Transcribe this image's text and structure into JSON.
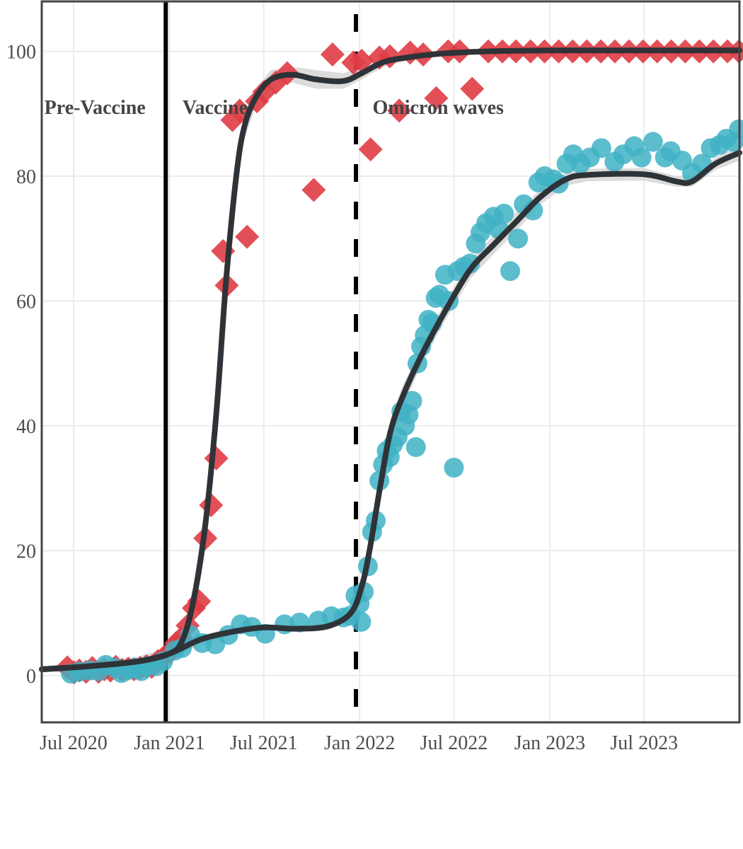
{
  "chart_data": {
    "type": "scatter",
    "title": "",
    "xlabel": "",
    "ylabel": "",
    "xlim": [
      "2020-05-01",
      "2023-12-31"
    ],
    "ylim": [
      -7.5,
      108
    ],
    "grid": true,
    "legend": "none",
    "x_ticks": [
      {
        "date": "2020-07-01",
        "label": "Jul 2020"
      },
      {
        "date": "2021-01-01",
        "label": "Jan 2021"
      },
      {
        "date": "2021-07-01",
        "label": "Jul 2021"
      },
      {
        "date": "2022-01-01",
        "label": "Jan 2022"
      },
      {
        "date": "2022-07-01",
        "label": "Jul 2022"
      },
      {
        "date": "2023-01-01",
        "label": "Jan 2023"
      },
      {
        "date": "2023-07-01",
        "label": "Jul 2023"
      }
    ],
    "y_ticks": [
      0,
      20,
      40,
      60,
      80,
      100
    ],
    "reference_lines": [
      {
        "date": "2020-12-25",
        "style": "solid",
        "color": "#000000"
      },
      {
        "date": "2021-12-25",
        "style": "dashed",
        "color": "#000000"
      }
    ],
    "annotations": [
      {
        "text": "Pre-Vaccine",
        "date": "2020-05-06",
        "y": 90
      },
      {
        "text": "Vaccine",
        "date": "2021-01-26",
        "y": 90
      },
      {
        "text": "Omicron waves",
        "date": "2022-01-26",
        "y": 90
      }
    ],
    "series": [
      {
        "marker": "diamond",
        "color": "#e03c44",
        "points": [
          [
            "2020-06-19",
            1.3
          ],
          [
            "2020-07-02",
            0.5
          ],
          [
            "2020-07-12",
            0.8
          ],
          [
            "2020-07-25",
            0.6
          ],
          [
            "2020-08-06",
            1.2
          ],
          [
            "2020-08-18",
            0.6
          ],
          [
            "2020-08-29",
            1.0
          ],
          [
            "2020-09-10",
            0.8
          ],
          [
            "2020-09-20",
            1.4
          ],
          [
            "2020-10-02",
            0.9
          ],
          [
            "2020-10-14",
            1.1
          ],
          [
            "2020-10-25",
            1.0
          ],
          [
            "2020-11-06",
            1.2
          ],
          [
            "2020-11-18",
            1.5
          ],
          [
            "2020-11-28",
            1.4
          ],
          [
            "2020-12-10",
            2.3
          ],
          [
            "2020-12-22",
            3.0
          ],
          [
            "2021-01-03",
            3.8
          ],
          [
            "2021-01-14",
            5.2
          ],
          [
            "2021-01-24",
            6.0
          ],
          [
            "2021-02-05",
            8.0
          ],
          [
            "2021-02-17",
            10.8
          ],
          [
            "2021-02-27",
            11.9
          ],
          [
            "2021-03-11",
            22.0
          ],
          [
            "2021-03-22",
            27.3
          ],
          [
            "2021-04-01",
            34.8
          ],
          [
            "2021-04-14",
            68.0
          ],
          [
            "2021-04-21",
            62.5
          ],
          [
            "2021-05-02",
            89.0
          ],
          [
            "2021-05-16",
            90.5
          ],
          [
            "2021-05-30",
            70.3
          ],
          [
            "2021-06-18",
            92.0
          ],
          [
            "2021-07-02",
            93.5
          ],
          [
            "2021-07-24",
            95.0
          ],
          [
            "2021-08-15",
            96.5
          ],
          [
            "2021-10-05",
            77.8
          ],
          [
            "2021-11-10",
            99.5
          ],
          [
            "2021-12-20",
            98.2
          ],
          [
            "2022-01-05",
            98.5
          ],
          [
            "2022-01-22",
            84.3
          ],
          [
            "2022-02-08",
            99.0
          ],
          [
            "2022-02-28",
            99.2
          ],
          [
            "2022-03-18",
            90.5
          ],
          [
            "2022-04-08",
            99.8
          ],
          [
            "2022-05-03",
            99.5
          ],
          [
            "2022-05-28",
            92.5
          ],
          [
            "2022-06-20",
            100.0
          ],
          [
            "2022-07-12",
            100.0
          ],
          [
            "2022-08-05",
            94.0
          ],
          [
            "2022-09-05",
            100.0
          ],
          [
            "2022-10-02",
            100.0
          ],
          [
            "2022-10-28",
            100.0
          ],
          [
            "2022-11-25",
            100.0
          ],
          [
            "2022-12-22",
            100.0
          ],
          [
            "2023-01-18",
            100.0
          ],
          [
            "2023-02-14",
            100.0
          ],
          [
            "2023-03-13",
            100.0
          ],
          [
            "2023-04-09",
            100.0
          ],
          [
            "2023-05-06",
            100.0
          ],
          [
            "2023-06-02",
            100.0
          ],
          [
            "2023-06-29",
            100.0
          ],
          [
            "2023-07-26",
            100.0
          ],
          [
            "2023-08-22",
            100.0
          ],
          [
            "2023-09-18",
            100.0
          ],
          [
            "2023-10-15",
            100.0
          ],
          [
            "2023-11-11",
            100.0
          ],
          [
            "2023-12-08",
            100.0
          ],
          [
            "2023-12-30",
            100.0
          ]
        ]
      },
      {
        "marker": "circle",
        "color": "#3fb1c4",
        "points": [
          [
            "2020-06-26",
            0.3
          ],
          [
            "2020-07-12",
            0.6
          ],
          [
            "2020-08-01",
            0.8
          ],
          [
            "2020-08-18",
            0.7
          ],
          [
            "2020-09-01",
            1.7
          ],
          [
            "2020-09-18",
            1.2
          ],
          [
            "2020-10-01",
            0.4
          ],
          [
            "2020-10-14",
            0.9
          ],
          [
            "2020-10-26",
            1.2
          ],
          [
            "2020-11-08",
            0.7
          ],
          [
            "2020-11-21",
            1.5
          ],
          [
            "2020-12-07",
            1.5
          ],
          [
            "2020-12-20",
            2.3
          ],
          [
            "2021-01-11",
            4.0
          ],
          [
            "2021-01-25",
            4.4
          ],
          [
            "2021-02-10",
            6.5
          ],
          [
            "2021-03-05",
            5.2
          ],
          [
            "2021-03-30",
            5.0
          ],
          [
            "2021-04-24",
            6.5
          ],
          [
            "2021-05-18",
            8.2
          ],
          [
            "2021-06-08",
            7.8
          ],
          [
            "2021-07-04",
            6.7
          ],
          [
            "2021-08-10",
            8.2
          ],
          [
            "2021-09-08",
            8.5
          ],
          [
            "2021-10-14",
            8.8
          ],
          [
            "2021-11-08",
            9.5
          ],
          [
            "2021-12-01",
            9.3
          ],
          [
            "2021-12-14",
            9.6
          ],
          [
            "2021-12-24",
            12.8
          ],
          [
            "2022-01-01",
            11.5
          ],
          [
            "2022-01-04",
            8.6
          ],
          [
            "2022-01-09",
            13.4
          ],
          [
            "2022-01-17",
            17.5
          ],
          [
            "2022-01-25",
            23.0
          ],
          [
            "2022-02-01",
            24.8
          ],
          [
            "2022-02-08",
            31.2
          ],
          [
            "2022-02-15",
            33.8
          ],
          [
            "2022-02-22",
            36.0
          ],
          [
            "2022-02-28",
            35.0
          ],
          [
            "2022-03-06",
            37.0
          ],
          [
            "2022-03-15",
            38.2
          ],
          [
            "2022-03-22",
            42.3
          ],
          [
            "2022-03-29",
            40.0
          ],
          [
            "2022-04-05",
            41.8
          ],
          [
            "2022-04-12",
            44.0
          ],
          [
            "2022-04-19",
            36.6
          ],
          [
            "2022-04-22",
            50.0
          ],
          [
            "2022-04-29",
            52.7
          ],
          [
            "2022-05-06",
            54.5
          ],
          [
            "2022-05-13",
            57.0
          ],
          [
            "2022-05-20",
            56.5
          ],
          [
            "2022-05-27",
            60.5
          ],
          [
            "2022-06-03",
            61.0
          ],
          [
            "2022-06-14",
            64.2
          ],
          [
            "2022-06-21",
            60.0
          ],
          [
            "2022-07-01",
            33.3
          ],
          [
            "2022-07-08",
            64.8
          ],
          [
            "2022-07-20",
            65.5
          ],
          [
            "2022-08-01",
            66.0
          ],
          [
            "2022-08-12",
            69.2
          ],
          [
            "2022-08-21",
            71.0
          ],
          [
            "2022-09-01",
            72.5
          ],
          [
            "2022-09-15",
            73.5
          ],
          [
            "2022-09-25",
            71.5
          ],
          [
            "2022-10-05",
            74.0
          ],
          [
            "2022-10-17",
            64.8
          ],
          [
            "2022-11-01",
            70.0
          ],
          [
            "2022-11-12",
            75.5
          ],
          [
            "2022-11-30",
            74.5
          ],
          [
            "2022-12-10",
            79.0
          ],
          [
            "2022-12-22",
            80.0
          ],
          [
            "2023-01-08",
            79.5
          ],
          [
            "2023-01-18",
            78.8
          ],
          [
            "2023-02-02",
            82.0
          ],
          [
            "2023-02-15",
            83.5
          ],
          [
            "2023-03-01",
            82.0
          ],
          [
            "2023-03-19",
            83.0
          ],
          [
            "2023-04-10",
            84.5
          ],
          [
            "2023-05-05",
            82.3
          ],
          [
            "2023-05-22",
            83.5
          ],
          [
            "2023-06-12",
            84.8
          ],
          [
            "2023-06-26",
            83.0
          ],
          [
            "2023-07-18",
            85.5
          ],
          [
            "2023-08-10",
            83.0
          ],
          [
            "2023-08-21",
            84.0
          ],
          [
            "2023-09-12",
            82.5
          ],
          [
            "2023-10-01",
            80.5
          ],
          [
            "2023-10-20",
            82.0
          ],
          [
            "2023-11-06",
            84.5
          ],
          [
            "2023-11-23",
            85.0
          ],
          [
            "2023-12-06",
            86.0
          ],
          [
            "2023-12-20",
            85.5
          ],
          [
            "2023-12-30",
            87.5
          ]
        ]
      }
    ],
    "trend_lines": [
      {
        "color": "#2e3338",
        "band_color": "#d6d6d6",
        "points": [
          [
            "2020-05-01",
            0.5,
            1.5
          ],
          [
            "2020-08-01",
            1.0,
            2.0
          ],
          [
            "2020-11-01",
            1.5,
            3.0
          ],
          [
            "2021-01-01",
            2.5,
            4.5
          ],
          [
            "2021-01-25",
            4.5,
            6.5
          ],
          [
            "2021-02-15",
            9.0,
            14.0
          ],
          [
            "2021-03-10",
            20.0,
            27.0
          ],
          [
            "2021-04-01",
            38.0,
            46.0
          ],
          [
            "2021-04-20",
            60.0,
            67.0
          ],
          [
            "2021-05-10",
            78.0,
            83.0
          ],
          [
            "2021-05-25",
            86.0,
            90.0
          ],
          [
            "2021-06-15",
            91.0,
            94.0
          ],
          [
            "2021-07-15",
            94.0,
            97.0
          ],
          [
            "2021-08-25",
            95.0,
            97.5
          ],
          [
            "2021-10-10",
            94.0,
            97.0
          ],
          [
            "2021-12-01",
            94.0,
            96.5
          ],
          [
            "2022-01-05",
            95.5,
            97.5
          ],
          [
            "2022-02-15",
            97.5,
            99.0
          ],
          [
            "2022-04-01",
            98.5,
            99.5
          ],
          [
            "2022-06-01",
            99.2,
            100.0
          ],
          [
            "2022-09-01",
            99.8,
            100.2
          ],
          [
            "2023-01-01",
            100.0,
            100.3
          ],
          [
            "2023-07-01",
            100.0,
            100.3
          ],
          [
            "2023-12-31",
            100.0,
            100.3
          ]
        ]
      },
      {
        "color": "#2e3338",
        "band_color": "#d6d6d6",
        "points": [
          [
            "2020-05-01",
            0.5,
            1.5
          ],
          [
            "2020-08-01",
            1.0,
            2.0
          ],
          [
            "2020-11-01",
            1.5,
            3.0
          ],
          [
            "2021-01-01",
            2.5,
            4.5
          ],
          [
            "2021-03-01",
            5.0,
            6.5
          ],
          [
            "2021-05-01",
            6.5,
            7.5
          ],
          [
            "2021-07-01",
            7.2,
            8.2
          ],
          [
            "2021-09-01",
            7.0,
            8.0
          ],
          [
            "2021-11-01",
            7.3,
            8.5
          ],
          [
            "2021-12-15",
            9.0,
            11.0
          ],
          [
            "2022-01-05",
            12.5,
            16.0
          ],
          [
            "2022-01-20",
            18.0,
            22.0
          ],
          [
            "2022-02-10",
            28.0,
            33.0
          ],
          [
            "2022-03-01",
            37.0,
            41.0
          ],
          [
            "2022-03-25",
            43.0,
            46.5
          ],
          [
            "2022-05-01",
            50.0,
            53.0
          ],
          [
            "2022-06-15",
            57.0,
            60.0
          ],
          [
            "2022-08-01",
            63.5,
            66.5
          ],
          [
            "2022-09-15",
            67.5,
            70.5
          ],
          [
            "2022-11-01",
            71.5,
            74.5
          ],
          [
            "2022-12-15",
            75.5,
            78.0
          ],
          [
            "2023-02-01",
            78.5,
            80.5
          ],
          [
            "2023-03-15",
            79.2,
            81.2
          ],
          [
            "2023-07-01",
            79.3,
            81.3
          ],
          [
            "2023-09-01",
            78.3,
            80.0
          ],
          [
            "2023-10-01",
            78.3,
            80.0
          ],
          [
            "2023-11-15",
            81.0,
            83.0
          ],
          [
            "2023-12-31",
            82.5,
            85.0
          ]
        ]
      }
    ]
  }
}
